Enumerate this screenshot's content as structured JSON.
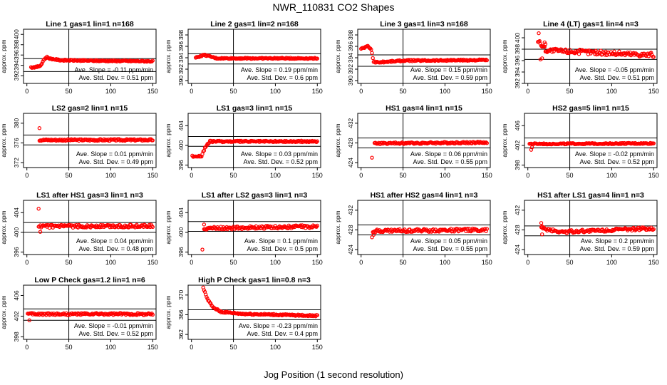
{
  "title": "NWR_110831  CO2 Shapes",
  "xlabel": "Jog Position (1 second resolution)",
  "colors": {
    "points": "#ff0000",
    "axes": "#000000",
    "background": "#ffffff"
  },
  "chart_data": [
    {
      "type": "scatter",
      "title": "Line 1 gas=1 lin=1 n=168",
      "ylabel": "approx. ppm",
      "xlim": [
        -4,
        154
      ],
      "ylim": [
        390.5,
        401
      ],
      "x_ticks": [
        0,
        50,
        100,
        150
      ],
      "y_ticks": [
        392,
        394,
        396,
        398,
        400
      ],
      "hlines": [
        392.8,
        395.3
      ],
      "vline": 50,
      "slope_text": "Ave. Slope = -0.11  ppm/min",
      "std_text": "Ave. Std. Dev. = 0.51  ppm",
      "shape": {
        "start": 5,
        "end": 150,
        "knots": [
          [
            5,
            393.6
          ],
          [
            12,
            393.7
          ],
          [
            17,
            394.0
          ],
          [
            20,
            395.1
          ],
          [
            24,
            395.6
          ],
          [
            28,
            395.3
          ],
          [
            40,
            395.0
          ],
          [
            80,
            394.9
          ],
          [
            150,
            394.8
          ]
        ],
        "noise": 0.12
      }
    },
    {
      "type": "scatter",
      "title": "Line 2 gas=1 lin=2 n=168",
      "ylabel": "approx. ppm",
      "xlim": [
        -4,
        154
      ],
      "ylim": [
        389.5,
        399
      ],
      "x_ticks": [
        0,
        50,
        100,
        150
      ],
      "y_ticks": [
        390,
        392,
        394,
        396,
        398
      ],
      "hlines": [
        392.9,
        394.7
      ],
      "vline": 50,
      "slope_text": "Ave. Slope = 0.19  ppm/min",
      "std_text": "Ave. Std. Dev. = 0.6  ppm",
      "shape": {
        "start": 5,
        "end": 150,
        "knots": [
          [
            5,
            394.0
          ],
          [
            15,
            394.5
          ],
          [
            30,
            393.9
          ],
          [
            150,
            393.9
          ]
        ],
        "noise": 0.1
      }
    },
    {
      "type": "scatter",
      "title": "Line 3 gas=1 lin=3 n=168",
      "ylabel": "approx. ppm",
      "xlim": [
        -4,
        154
      ],
      "ylim": [
        389.5,
        399
      ],
      "x_ticks": [
        0,
        50,
        100,
        150
      ],
      "y_ticks": [
        390,
        392,
        394,
        396,
        398
      ],
      "hlines": [
        392.5,
        394.5
      ],
      "vline": 50,
      "slope_text": "Ave. Slope = 0.15  ppm/min",
      "std_text": "Ave. Std. Dev. = 0.59  ppm",
      "shape": {
        "start": 0,
        "end": 150,
        "knots": [
          [
            0,
            395.6
          ],
          [
            8,
            396.0
          ],
          [
            12,
            395.5
          ],
          [
            15,
            393.3
          ],
          [
            20,
            393.2
          ],
          [
            50,
            393.5
          ],
          [
            150,
            393.6
          ]
        ],
        "noise": 0.12
      }
    },
    {
      "type": "scatter",
      "title": "Line 4 (LT) gas=1 lin=4 n=3",
      "ylabel": "approx. ppm",
      "xlim": [
        -4,
        154
      ],
      "ylim": [
        392,
        401.5
      ],
      "x_ticks": [
        0,
        50,
        100,
        150
      ],
      "y_ticks": [
        392,
        394,
        396,
        398,
        400
      ],
      "hlines": [
        396.2,
        398.0
      ],
      "vline": 50,
      "slope_text": "Ave. Slope = -0.05  ppm/min",
      "std_text": "Ave. Std. Dev. = 0.51  ppm",
      "shape": {
        "start": 12,
        "end": 150,
        "knots": [
          [
            12,
            399.5
          ],
          [
            22,
            397.8
          ],
          [
            150,
            397.0
          ]
        ],
        "noise": 0.4
      },
      "extra_points": [
        [
          13,
          400.8
        ],
        [
          15,
          396.2
        ],
        [
          17,
          396.4
        ],
        [
          19,
          398.5
        ],
        [
          20,
          399.2
        ],
        [
          21,
          398.9
        ],
        [
          23,
          397.5
        ]
      ]
    },
    {
      "type": "scatter",
      "title": "LS2 gas=2 lin=1 n=15",
      "ylabel": "approx. ppm",
      "xlim": [
        -4,
        154
      ],
      "ylim": [
        371,
        382
      ],
      "x_ticks": [
        0,
        50,
        100,
        150
      ],
      "y_ticks": [
        372,
        376,
        380
      ],
      "hlines": [
        375.6,
        377.6
      ],
      "vline": 50,
      "slope_text": "Ave. Slope = 0.01  ppm/min",
      "std_text": "Ave. Std. Dev. = 0.49  ppm",
      "shape": {
        "start": 15,
        "end": 150,
        "knots": [
          [
            15,
            376.6
          ],
          [
            150,
            376.6
          ]
        ],
        "noise": 0.18
      },
      "extra_points": [
        [
          15,
          379.0
        ]
      ]
    },
    {
      "type": "scatter",
      "title": "LS1 gas=3 lin=1 n=15",
      "ylabel": "approx. ppm",
      "xlim": [
        -4,
        154
      ],
      "ylim": [
        395.5,
        406.5
      ],
      "x_ticks": [
        0,
        50,
        100,
        150
      ],
      "y_ticks": [
        396,
        400,
        404
      ],
      "hlines": [
        399.8,
        401.8
      ],
      "vline": 50,
      "slope_text": "Ave. Slope = 0.03  ppm/min",
      "std_text": "Ave. Std. Dev. = 0.52  ppm",
      "shape": {
        "start": 1,
        "end": 150,
        "knots": [
          [
            1,
            397.8
          ],
          [
            12,
            397.8
          ],
          [
            16,
            399.5
          ],
          [
            22,
            400.8
          ],
          [
            150,
            400.8
          ]
        ],
        "noise": 0.15
      }
    },
    {
      "type": "scatter",
      "title": "HS1 gas=4 lin=1 n=15",
      "ylabel": "approx. ppm",
      "xlim": [
        -4,
        154
      ],
      "ylim": [
        423,
        434
      ],
      "x_ticks": [
        0,
        50,
        100,
        150
      ],
      "y_ticks": [
        424,
        428,
        432
      ],
      "hlines": [
        427.0,
        429.0
      ],
      "vline": 50,
      "slope_text": "Ave. Slope = 0.06  ppm/min",
      "std_text": "Ave. Std. Dev. = 0.55  ppm",
      "shape": {
        "start": 16,
        "end": 150,
        "knots": [
          [
            16,
            427.9
          ],
          [
            150,
            428.1
          ]
        ],
        "noise": 0.18
      },
      "extra_points": [
        [
          13,
          425.0
        ]
      ]
    },
    {
      "type": "scatter",
      "title": "HS2 gas=5 lin=1 n=15",
      "ylabel": "approx. ppm",
      "xlim": [
        -4,
        154
      ],
      "ylim": [
        397.5,
        408.5
      ],
      "x_ticks": [
        0,
        50,
        100,
        150
      ],
      "y_ticks": [
        398,
        402,
        406
      ],
      "hlines": [
        401.5,
        403.5
      ],
      "vline": 50,
      "slope_text": "Ave. Slope = -0.02  ppm/min",
      "std_text": "Ave. Std. Dev. = 0.52  ppm",
      "shape": {
        "start": 2,
        "end": 150,
        "knots": [
          [
            2,
            402.3
          ],
          [
            150,
            402.4
          ]
        ],
        "noise": 0.12
      },
      "extra_points": [
        [
          4,
          401.1
        ],
        [
          5,
          401.6
        ]
      ]
    },
    {
      "type": "scatter",
      "title": "LS1 after HS1 gas=3 lin=1 n=3",
      "ylabel": "approx. ppm",
      "xlim": [
        -4,
        154
      ],
      "ylim": [
        395.5,
        406.5
      ],
      "x_ticks": [
        0,
        50,
        100,
        150
      ],
      "y_ticks": [
        396,
        400,
        404
      ],
      "hlines": [
        400.0,
        402.0
      ],
      "vline": 50,
      "slope_text": "Ave. Slope = 0.04  ppm/min",
      "std_text": "Ave. Std. Dev. = 0.48  ppm",
      "shape": {
        "start": 14,
        "end": 150,
        "knots": [
          [
            14,
            401.2
          ],
          [
            150,
            401.3
          ]
        ],
        "noise": 0.3
      },
      "extra_points": [
        [
          14,
          404.8
        ],
        [
          16,
          400.1
        ]
      ]
    },
    {
      "type": "scatter",
      "title": "LS1 after LS2 gas=3 lin=1 n=3",
      "ylabel": "approx. ppm",
      "xlim": [
        -4,
        154
      ],
      "ylim": [
        395.5,
        406.5
      ],
      "x_ticks": [
        0,
        50,
        100,
        150
      ],
      "y_ticks": [
        396,
        400,
        404
      ],
      "hlines": [
        400.2,
        402.2
      ],
      "vline": 50,
      "slope_text": "Ave. Slope = 0.1  ppm/min",
      "std_text": "Ave. Std. Dev. = 0.5  ppm",
      "shape": {
        "start": 15,
        "end": 150,
        "knots": [
          [
            15,
            400.8
          ],
          [
            150,
            401.2
          ]
        ],
        "noise": 0.3
      },
      "extra_points": [
        [
          13,
          396.5
        ],
        [
          15,
          401.6
        ]
      ]
    },
    {
      "type": "scatter",
      "title": "HS1 after HS2 gas=4 lin=1 n=3",
      "ylabel": "approx. ppm",
      "xlim": [
        -4,
        154
      ],
      "ylim": [
        423,
        434
      ],
      "x_ticks": [
        0,
        50,
        100,
        150
      ],
      "y_ticks": [
        424,
        428,
        432
      ],
      "hlines": [
        427.0,
        429.0
      ],
      "vline": 50,
      "slope_text": "Ave. Slope = 0.05  ppm/min",
      "std_text": "Ave. Std. Dev. = 0.55  ppm",
      "shape": {
        "start": 14,
        "end": 150,
        "knots": [
          [
            14,
            427.8
          ],
          [
            150,
            428.0
          ]
        ],
        "noise": 0.3
      },
      "extra_points": [
        [
          13,
          426.5
        ],
        [
          15,
          427.0
        ]
      ]
    },
    {
      "type": "scatter",
      "title": "HS1 after LS1 gas=4 lin=1 n=3",
      "ylabel": "approx. ppm",
      "xlim": [
        -4,
        154
      ],
      "ylim": [
        423,
        434
      ],
      "x_ticks": [
        0,
        50,
        100,
        150
      ],
      "y_ticks": [
        424,
        428,
        432
      ],
      "hlines": [
        426.8,
        428.8
      ],
      "vline": 50,
      "slope_text": "Ave. Slope = 0.2  ppm/min",
      "std_text": "Ave. Std. Dev. = 0.59  ppm",
      "shape": {
        "start": 16,
        "end": 150,
        "knots": [
          [
            16,
            428.3
          ],
          [
            40,
            427.6
          ],
          [
            150,
            428.3
          ]
        ],
        "noise": 0.3
      },
      "extra_points": [
        [
          16,
          429.4
        ],
        [
          17,
          428.7
        ],
        [
          17,
          427.1
        ]
      ]
    },
    {
      "type": "scatter",
      "title": "Low P Check gas=1.2 lin=1 n=6",
      "ylabel": "approx. ppm",
      "xlim": [
        -4,
        154
      ],
      "ylim": [
        397.5,
        408
      ],
      "x_ticks": [
        0,
        50,
        100,
        150
      ],
      "y_ticks": [
        398,
        402,
        406
      ],
      "hlines": [
        401.2,
        403.4
      ],
      "vline": 50,
      "slope_text": "Ave. Slope = -0.01  ppm/min",
      "std_text": "Ave. Std. Dev. = 0.52  ppm",
      "shape": {
        "start": 1,
        "end": 150,
        "knots": [
          [
            1,
            402.4
          ],
          [
            150,
            402.4
          ]
        ],
        "noise": 0.2
      },
      "extra_points": [
        [
          3,
          401.2
        ]
      ]
    },
    {
      "type": "scatter",
      "title": "High P Check gas=1 lin=0.8 n=3",
      "ylabel": "approx. ppm",
      "xlim": [
        -4,
        154
      ],
      "ylim": [
        361,
        372
      ],
      "x_ticks": [
        0,
        50,
        100,
        150
      ],
      "y_ticks": [
        362,
        366,
        370
      ],
      "hlines": [
        365.0,
        367.0
      ],
      "vline": 50,
      "slope_text": "Ave. Slope = -0.23  ppm/min",
      "std_text": "Ave. Std. Dev. = 0.4  ppm",
      "shape": {
        "start": 14,
        "end": 150,
        "knots": [
          [
            14,
            371.5
          ],
          [
            18,
            369.5
          ],
          [
            25,
            367.6
          ],
          [
            35,
            366.6
          ],
          [
            60,
            366.2
          ],
          [
            150,
            365.8
          ]
        ],
        "noise": 0.15
      }
    }
  ]
}
